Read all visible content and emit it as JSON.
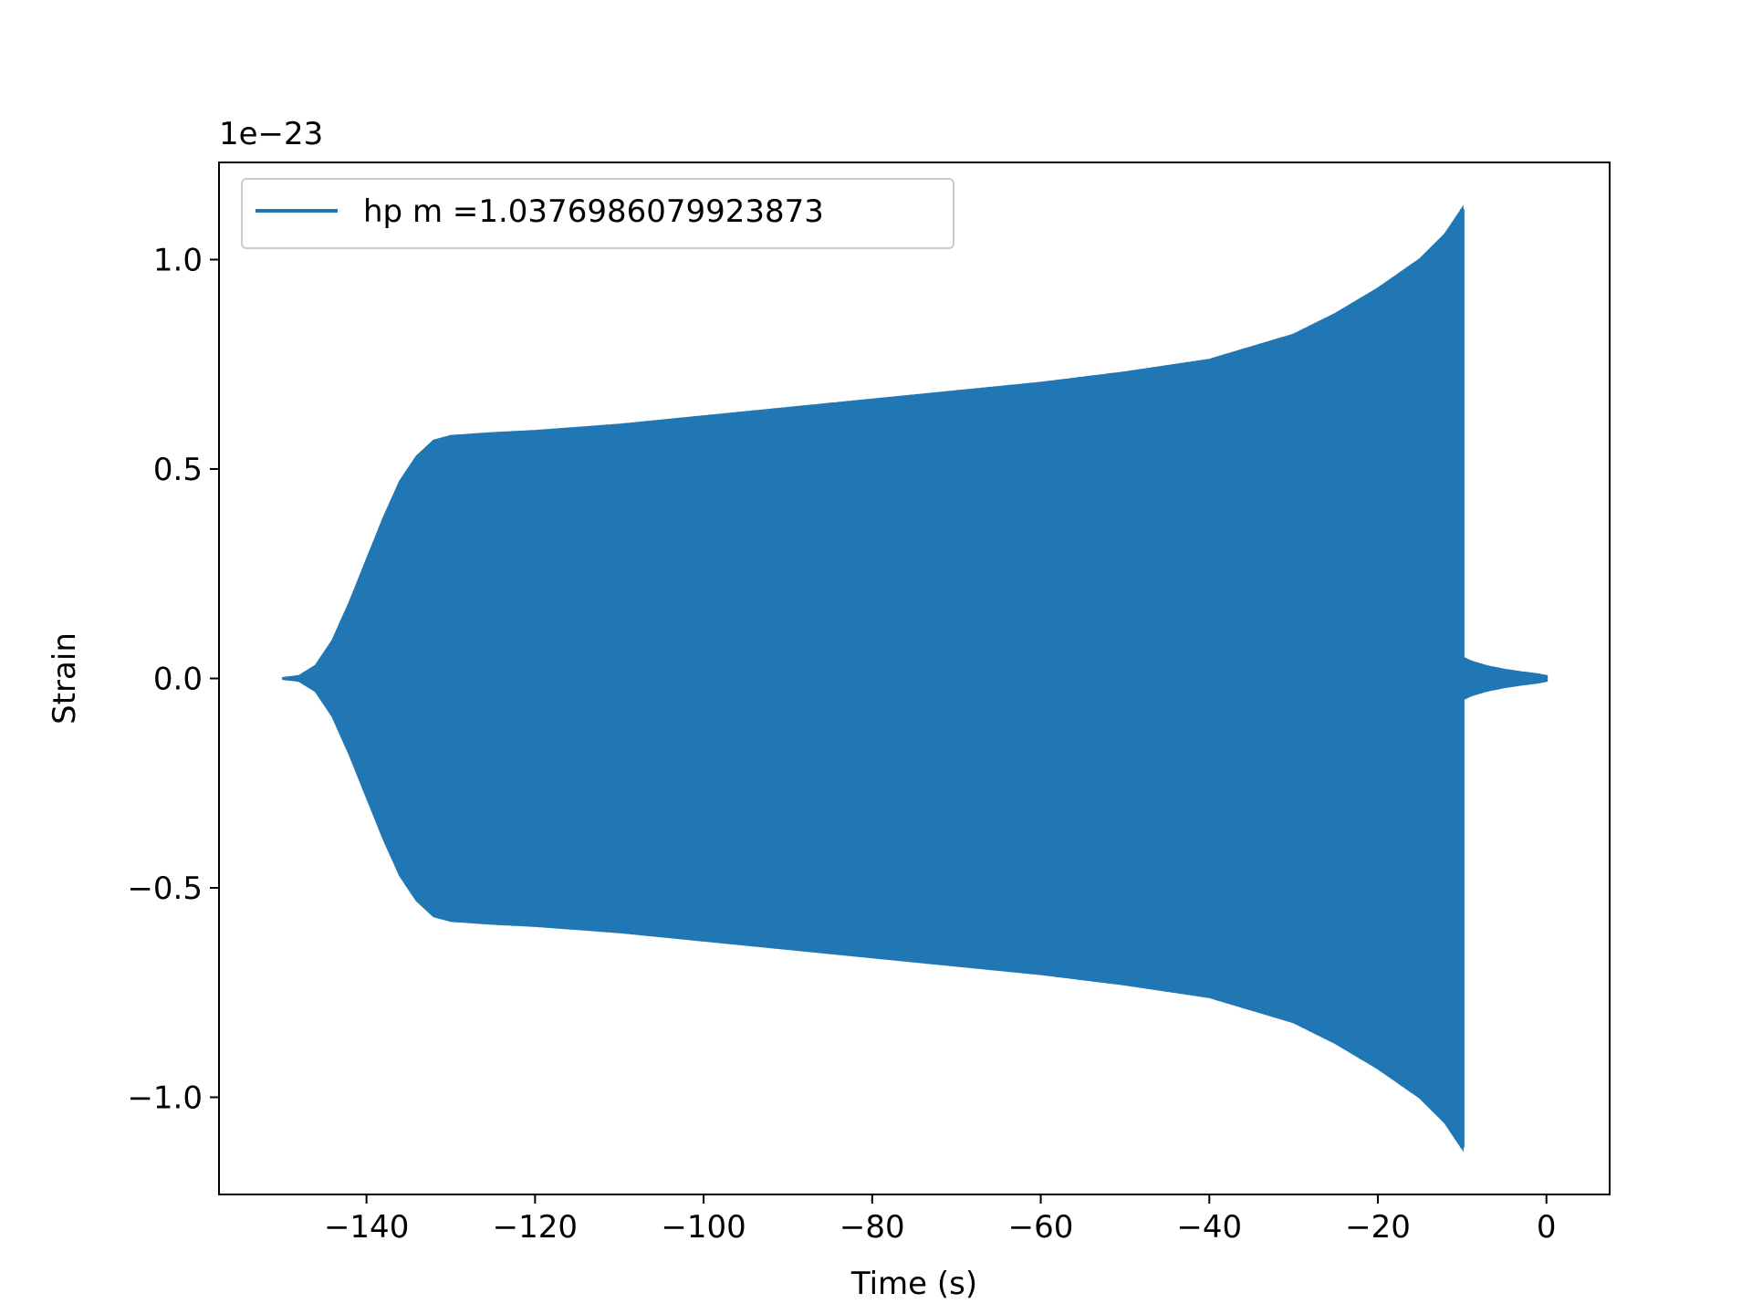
{
  "chart_data": {
    "type": "line",
    "title": "",
    "xlabel": "Time (s)",
    "ylabel": "Strain",
    "offset_label": "1e−23",
    "xlim": [
      -157.5,
      7.5
    ],
    "ylim": [
      -1.232,
      1.232
    ],
    "x_ticks": [
      -140,
      -120,
      -100,
      -80,
      -60,
      -40,
      -20,
      0
    ],
    "x_tick_labels": [
      "−140",
      "−120",
      "−100",
      "−80",
      "−60",
      "−40",
      "−20",
      "0"
    ],
    "y_ticks": [
      -1.0,
      -0.5,
      0.0,
      0.5,
      1.0
    ],
    "y_tick_labels": [
      "−1.0",
      "−0.5",
      "0.0",
      "0.5",
      "1.0"
    ],
    "grid": false,
    "legend_position": "upper-left",
    "series": [
      {
        "name": "hp m =1.0376986079923873",
        "color": "#2077b4",
        "envelope": {
          "t": [
            -150,
            -148,
            -146,
            -144,
            -142,
            -140,
            -138,
            -136,
            -134,
            -132,
            -130,
            -125,
            -120,
            -110,
            -100,
            -90,
            -80,
            -70,
            -60,
            -50,
            -40,
            -30,
            -25,
            -20,
            -15,
            -12,
            -10
          ],
          "amp": [
            0.0,
            0.005,
            0.03,
            0.09,
            0.18,
            0.28,
            0.38,
            0.47,
            0.53,
            0.567,
            0.578,
            0.585,
            0.59,
            0.605,
            0.625,
            0.645,
            0.665,
            0.685,
            0.705,
            0.73,
            0.76,
            0.82,
            0.87,
            0.93,
            1.0,
            1.06,
            1.12
          ]
        },
        "ringdown": {
          "t": [
            -10,
            -9,
            -7,
            -5,
            -3,
            -1,
            0
          ],
          "amp": [
            0.05,
            0.04,
            0.028,
            0.02,
            0.014,
            0.009,
            0.005
          ]
        }
      }
    ]
  }
}
